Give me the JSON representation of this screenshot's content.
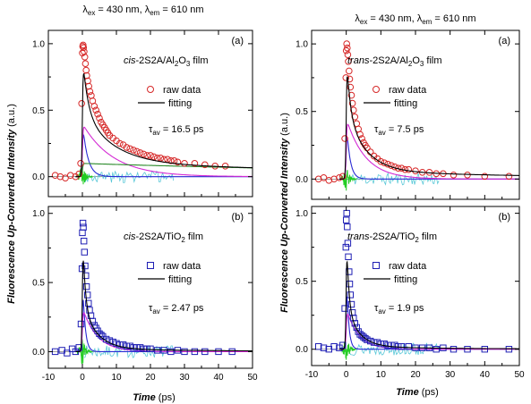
{
  "figure": {
    "headers": [
      {
        "lambda_ex": "430 nm",
        "lambda_em": "610 nm"
      },
      {
        "lambda_ex": "430 nm",
        "lambda_em": "610 nm"
      }
    ],
    "ylabel": "Fluorescence Up-Converted Intensity",
    "ylabel_unit": "(a.u.)",
    "xlabel": "Time",
    "xlabel_unit": "(ps)",
    "colors": {
      "raw_red": "#d62828",
      "raw_blue": "#1f1fb4",
      "fit_black": "#000000",
      "comp_magenta": "#d42ad4",
      "comp_blue": "#2a2ad4",
      "comp_green": "#2a8a2a",
      "irf_green": "#22cc22",
      "residual_cyan": "#5ac8d8"
    }
  },
  "chart_data": [
    {
      "type": "scatter",
      "id": "left-a",
      "panel_label": "(a)",
      "sample_prefix": "cis",
      "sample_rest": "-2S2A/Al",
      "sample_sub": "2",
      "sample_mid": "O",
      "sample_sub2": "3",
      "sample_suffix": " film",
      "legend": [
        "raw data",
        "fitting"
      ],
      "tau_label": "τ",
      "tau_sub": "av",
      "tau_value": "= 16.5 ps",
      "xlim": [
        -10,
        50
      ],
      "ylim": [
        -0.15,
        1.1
      ],
      "xticks": [
        -10,
        0,
        10,
        20,
        30,
        40,
        50
      ],
      "yticks": [
        0.0,
        0.5,
        1.0
      ],
      "ytick_labels": [
        "0.0",
        "0.5",
        "1.0"
      ],
      "marker": "circle",
      "raw_points": [
        [
          -8,
          0.01
        ],
        [
          -6.5,
          0.0
        ],
        [
          -5,
          -0.01
        ],
        [
          -3.5,
          0.01
        ],
        [
          -2,
          0.0
        ],
        [
          -1,
          0.02
        ],
        [
          -0.5,
          0.1
        ],
        [
          -0.2,
          0.55
        ],
        [
          0,
          0.93
        ],
        [
          0.1,
          0.98
        ],
        [
          0.2,
          0.99
        ],
        [
          0.35,
          0.97
        ],
        [
          0.5,
          0.94
        ],
        [
          0.7,
          0.9
        ],
        [
          0.9,
          0.85
        ],
        [
          1.1,
          0.8
        ],
        [
          1.3,
          0.76
        ],
        [
          1.6,
          0.72
        ],
        [
          1.9,
          0.68
        ],
        [
          2.2,
          0.64
        ],
        [
          2.6,
          0.61
        ],
        [
          3,
          0.57
        ],
        [
          3.5,
          0.53
        ],
        [
          4,
          0.5
        ],
        [
          4.5,
          0.47
        ],
        [
          5,
          0.44
        ],
        [
          5.5,
          0.41
        ],
        [
          6,
          0.39
        ],
        [
          6.5,
          0.37
        ],
        [
          7,
          0.35
        ],
        [
          7.5,
          0.33
        ],
        [
          8,
          0.31
        ],
        [
          9,
          0.29
        ],
        [
          10,
          0.27
        ],
        [
          11,
          0.25
        ],
        [
          12,
          0.24
        ],
        [
          13,
          0.22
        ],
        [
          14,
          0.21
        ],
        [
          15,
          0.2
        ],
        [
          16,
          0.19
        ],
        [
          17,
          0.18
        ],
        [
          18,
          0.17
        ],
        [
          19,
          0.16
        ],
        [
          20,
          0.16
        ],
        [
          21,
          0.15
        ],
        [
          22,
          0.14
        ],
        [
          23,
          0.14
        ],
        [
          24,
          0.13
        ],
        [
          25,
          0.13
        ],
        [
          26,
          0.12
        ],
        [
          27,
          0.12
        ],
        [
          28,
          0.11
        ],
        [
          30,
          0.1
        ],
        [
          33,
          0.1
        ],
        [
          36,
          0.09
        ],
        [
          39,
          0.08
        ],
        [
          42,
          0.08
        ]
      ],
      "fit": {
        "amps": [
          0.42,
          0.4,
          0.1
        ],
        "taus": [
          1.5,
          9,
          120
        ]
      },
      "components": [
        {
          "color": "comp_blue",
          "amp": 0.42,
          "tau": 1.5
        },
        {
          "color": "comp_magenta",
          "amp": 0.4,
          "tau": 9
        },
        {
          "color": "comp_green",
          "amp": 0.1,
          "tau": 120
        }
      ],
      "residual_seed": 3
    },
    {
      "type": "scatter",
      "id": "left-b",
      "panel_label": "(b)",
      "sample_prefix": "cis",
      "sample_rest": "-2S2A/TiO",
      "sample_sub": "2",
      "sample_mid": "",
      "sample_sub2": "",
      "sample_suffix": " film",
      "legend": [
        "raw data",
        "fitting"
      ],
      "tau_label": "τ",
      "tau_sub": "av",
      "tau_value": "= 2.47 ps",
      "xlim": [
        -10,
        50
      ],
      "ylim": [
        -0.12,
        1.05
      ],
      "xticks": [
        -10,
        0,
        10,
        20,
        30,
        40,
        50
      ],
      "yticks": [
        0.0,
        0.5,
        1.0
      ],
      "ytick_labels": [
        "0.0",
        "0.5",
        "1.0"
      ],
      "marker": "square",
      "raw_points": [
        [
          -8,
          0.0
        ],
        [
          -6,
          0.01
        ],
        [
          -4.5,
          -0.01
        ],
        [
          -3,
          0.02
        ],
        [
          -2,
          0.0
        ],
        [
          -1,
          0.03
        ],
        [
          -0.4,
          0.2
        ],
        [
          -0.1,
          0.6
        ],
        [
          0,
          0.86
        ],
        [
          0.15,
          0.93
        ],
        [
          0.3,
          0.9
        ],
        [
          0.45,
          0.8
        ],
        [
          0.6,
          0.72
        ],
        [
          0.8,
          0.62
        ],
        [
          1,
          0.55
        ],
        [
          1.2,
          0.47
        ],
        [
          1.5,
          0.41
        ],
        [
          1.8,
          0.35
        ],
        [
          2.1,
          0.3
        ],
        [
          2.5,
          0.26
        ],
        [
          3,
          0.22
        ],
        [
          3.5,
          0.19
        ],
        [
          4,
          0.17
        ],
        [
          4.5,
          0.15
        ],
        [
          5,
          0.13
        ],
        [
          5.5,
          0.12
        ],
        [
          6,
          0.11
        ],
        [
          7,
          0.09
        ],
        [
          8,
          0.08
        ],
        [
          9,
          0.07
        ],
        [
          10,
          0.06
        ],
        [
          11,
          0.05
        ],
        [
          12,
          0.05
        ],
        [
          13,
          0.04
        ],
        [
          14,
          0.04
        ],
        [
          15,
          0.03
        ],
        [
          16,
          0.03
        ],
        [
          17,
          0.03
        ],
        [
          18,
          0.02
        ],
        [
          19,
          0.02
        ],
        [
          20,
          0.02
        ],
        [
          22,
          0.01
        ],
        [
          24,
          0.01
        ],
        [
          26,
          0.0
        ],
        [
          28,
          0.01
        ],
        [
          30,
          0.0
        ],
        [
          33,
          0.0
        ],
        [
          36,
          0.0
        ],
        [
          40,
          0.0
        ],
        [
          44,
          0.0
        ]
      ],
      "fit": {
        "amps": [
          0.6,
          0.32,
          0.02
        ],
        "taus": [
          0.7,
          4.2,
          40
        ]
      },
      "components": [
        {
          "color": "comp_blue",
          "amp": 0.6,
          "tau": 0.7
        },
        {
          "color": "comp_magenta",
          "amp": 0.32,
          "tau": 4.2
        }
      ],
      "residual_seed": 7
    },
    {
      "type": "scatter",
      "id": "right-a",
      "panel_label": "(a)",
      "sample_prefix": "trans",
      "sample_rest": "-2S2A/Al",
      "sample_sub": "2",
      "sample_mid": "O",
      "sample_sub2": "3",
      "sample_suffix": " film",
      "legend": [
        "raw data",
        "fitting"
      ],
      "tau_label": "τ",
      "tau_sub": "av",
      "tau_value": "= 7.5 ps",
      "xlim": [
        -10,
        50
      ],
      "ylim": [
        -0.15,
        1.1
      ],
      "xticks": [
        -10,
        0,
        10,
        20,
        30,
        40,
        50
      ],
      "yticks": [
        0.0,
        0.5,
        1.0
      ],
      "ytick_labels": [
        "0.0",
        "0.5",
        "1.0"
      ],
      "marker": "circle",
      "raw_points": [
        [
          -8,
          0.0
        ],
        [
          -6.5,
          0.01
        ],
        [
          -5,
          -0.01
        ],
        [
          -3.5,
          0.0
        ],
        [
          -2,
          0.01
        ],
        [
          -1,
          0.02
        ],
        [
          -0.4,
          0.3
        ],
        [
          -0.1,
          0.75
        ],
        [
          0,
          0.95
        ],
        [
          0.15,
          1.0
        ],
        [
          0.3,
          0.97
        ],
        [
          0.45,
          0.92
        ],
        [
          0.6,
          0.87
        ],
        [
          0.8,
          0.8
        ],
        [
          1,
          0.74
        ],
        [
          1.2,
          0.68
        ],
        [
          1.5,
          0.62
        ],
        [
          1.8,
          0.56
        ],
        [
          2.1,
          0.51
        ],
        [
          2.5,
          0.46
        ],
        [
          3,
          0.41
        ],
        [
          3.5,
          0.37
        ],
        [
          4,
          0.33
        ],
        [
          4.5,
          0.3
        ],
        [
          5,
          0.27
        ],
        [
          5.5,
          0.25
        ],
        [
          6,
          0.23
        ],
        [
          7,
          0.2
        ],
        [
          8,
          0.17
        ],
        [
          9,
          0.15
        ],
        [
          10,
          0.13
        ],
        [
          11,
          0.12
        ],
        [
          12,
          0.11
        ],
        [
          13,
          0.1
        ],
        [
          14,
          0.09
        ],
        [
          15,
          0.08
        ],
        [
          16,
          0.08
        ],
        [
          17,
          0.07
        ],
        [
          18,
          0.07
        ],
        [
          20,
          0.06
        ],
        [
          22,
          0.05
        ],
        [
          24,
          0.05
        ],
        [
          26,
          0.04
        ],
        [
          28,
          0.04
        ],
        [
          31,
          0.03
        ],
        [
          35,
          0.03
        ],
        [
          40,
          0.02
        ],
        [
          47,
          0.02
        ]
      ],
      "fit": {
        "amps": [
          0.45,
          0.45,
          0.06
        ],
        "taus": [
          1.0,
          5.5,
          60
        ]
      },
      "components": [
        {
          "color": "comp_blue",
          "amp": 0.45,
          "tau": 1.0
        },
        {
          "color": "comp_magenta",
          "amp": 0.45,
          "tau": 5.5
        }
      ],
      "residual_seed": 11
    },
    {
      "type": "scatter",
      "id": "right-b",
      "panel_label": "(b)",
      "sample_prefix": "trans",
      "sample_rest": "-2S2A/TiO",
      "sample_sub": "2",
      "sample_mid": "",
      "sample_sub2": "",
      "sample_suffix": " film",
      "legend": [
        "raw data",
        "fitting"
      ],
      "tau_label": "τ",
      "tau_sub": "av",
      "tau_value": "= 1.9 ps",
      "xlim": [
        -10,
        50
      ],
      "ylim": [
        -0.12,
        1.05
      ],
      "xticks": [
        -10,
        0,
        10,
        20,
        30,
        40,
        50
      ],
      "yticks": [
        0.0,
        0.5,
        1.0
      ],
      "ytick_labels": [
        "0.0",
        "0.5",
        "1.0"
      ],
      "marker": "square",
      "raw_points": [
        [
          -8,
          0.02
        ],
        [
          -6.5,
          0.01
        ],
        [
          -5,
          0.0
        ],
        [
          -3.5,
          0.02
        ],
        [
          -2,
          0.01
        ],
        [
          -1,
          0.03
        ],
        [
          -0.4,
          0.3
        ],
        [
          -0.1,
          0.75
        ],
        [
          0,
          0.95
        ],
        [
          0.15,
          1.0
        ],
        [
          0.3,
          0.9
        ],
        [
          0.45,
          0.78
        ],
        [
          0.6,
          0.68
        ],
        [
          0.8,
          0.57
        ],
        [
          1,
          0.48
        ],
        [
          1.2,
          0.4
        ],
        [
          1.5,
          0.33
        ],
        [
          1.8,
          0.27
        ],
        [
          2.1,
          0.23
        ],
        [
          2.5,
          0.19
        ],
        [
          3,
          0.16
        ],
        [
          3.5,
          0.13
        ],
        [
          4,
          0.11
        ],
        [
          4.5,
          0.1
        ],
        [
          5,
          0.09
        ],
        [
          5.5,
          0.08
        ],
        [
          6,
          0.07
        ],
        [
          7,
          0.06
        ],
        [
          8,
          0.05
        ],
        [
          9,
          0.05
        ],
        [
          10,
          0.04
        ],
        [
          11,
          0.04
        ],
        [
          12,
          0.03
        ],
        [
          13,
          0.03
        ],
        [
          14,
          0.03
        ],
        [
          15,
          0.02
        ],
        [
          16,
          0.02
        ],
        [
          18,
          0.02
        ],
        [
          20,
          0.01
        ],
        [
          22,
          0.01
        ],
        [
          24,
          0.01
        ],
        [
          26,
          0.0
        ],
        [
          28,
          0.01
        ],
        [
          31,
          0.0
        ],
        [
          35,
          0.0
        ],
        [
          40,
          0.0
        ],
        [
          47,
          0.0
        ]
      ],
      "fit": {
        "amps": [
          0.65,
          0.3,
          0.02
        ],
        "taus": [
          0.6,
          3.5,
          30
        ]
      },
      "components": [
        {
          "color": "comp_blue",
          "amp": 0.65,
          "tau": 0.6
        },
        {
          "color": "comp_magenta",
          "amp": 0.3,
          "tau": 3.5
        }
      ],
      "residual_seed": 13
    }
  ]
}
